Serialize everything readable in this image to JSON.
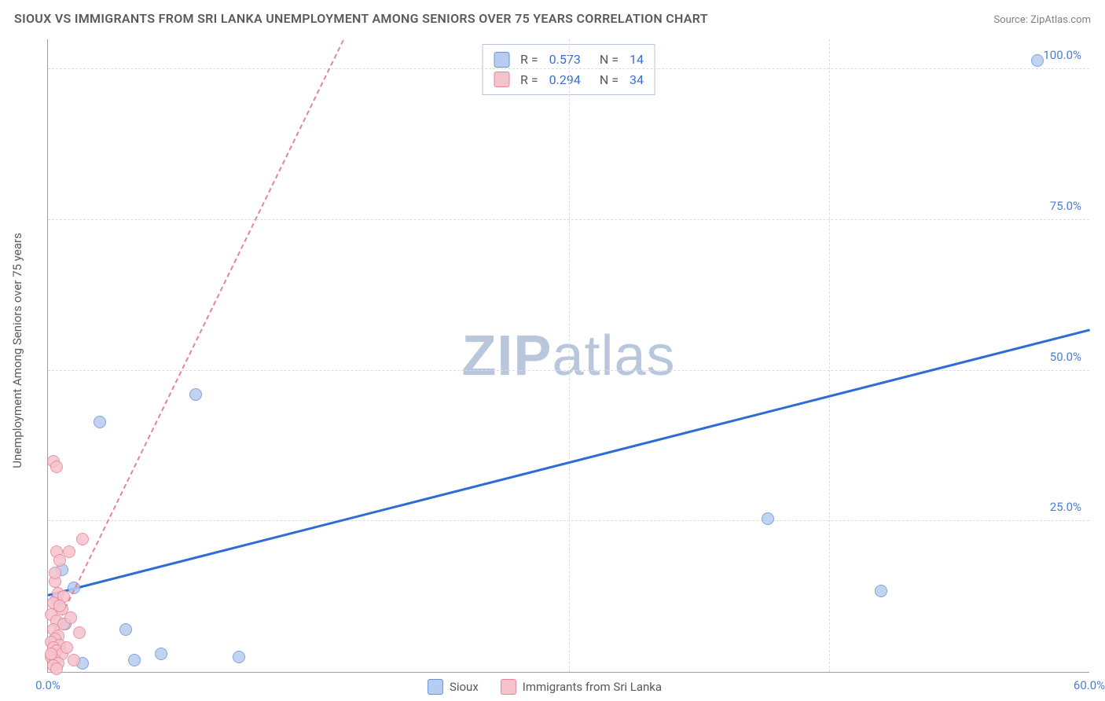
{
  "title": "SIOUX VS IMMIGRANTS FROM SRI LANKA UNEMPLOYMENT AMONG SENIORS OVER 75 YEARS CORRELATION CHART",
  "source_label": "Source:",
  "source_name": "ZipAtlas.com",
  "ylabel": "Unemployment Among Seniors over 75 years",
  "watermark_a": "ZIP",
  "watermark_b": "atlas",
  "chart": {
    "type": "scatter",
    "background_color": "#ffffff",
    "axis_color": "#9aa0a6",
    "grid_color": "#dcdcdc",
    "tick_color": "#4a7fd6",
    "text_color": "#5a5a5a",
    "xlim": [
      0,
      60
    ],
    "ylim": [
      0,
      105
    ],
    "xticks": [
      {
        "v": 0,
        "label": "0.0%"
      },
      {
        "v": 60,
        "label": "60.0%"
      }
    ],
    "xgrid": [
      30,
      45
    ],
    "yticks": [
      {
        "v": 25,
        "label": "25.0%"
      },
      {
        "v": 50,
        "label": "50.0%"
      },
      {
        "v": 75,
        "label": "75.0%"
      },
      {
        "v": 100,
        "label": "100.0%"
      }
    ],
    "marker_radius": 8,
    "series": [
      {
        "id": "sioux",
        "label": "Sioux",
        "fill": "#b6cdf0",
        "stroke": "#6b94d6",
        "trend": {
          "color": "#2e6bd6",
          "width": 3,
          "dash": "solid",
          "x1": 0,
          "y1": 13,
          "x2": 60,
          "y2": 57
        },
        "R_label": "R =",
        "R": "0.573",
        "N_label": "N =",
        "N": "14",
        "points": [
          {
            "x": 57.0,
            "y": 101.5
          },
          {
            "x": 3.0,
            "y": 41.5
          },
          {
            "x": 8.5,
            "y": 46.0
          },
          {
            "x": 41.5,
            "y": 25.5
          },
          {
            "x": 48.0,
            "y": 13.5
          },
          {
            "x": 2.0,
            "y": 1.5
          },
          {
            "x": 4.5,
            "y": 7.0
          },
          {
            "x": 1.5,
            "y": 14.0
          },
          {
            "x": 0.8,
            "y": 17.0
          },
          {
            "x": 5.0,
            "y": 2.0
          },
          {
            "x": 6.5,
            "y": 3.0
          },
          {
            "x": 11.0,
            "y": 2.5
          },
          {
            "x": 1.0,
            "y": 8.0
          },
          {
            "x": 0.5,
            "y": 12.0
          }
        ]
      },
      {
        "id": "srilanka",
        "label": "Immigrants from Sri Lanka",
        "fill": "#f6c3cd",
        "stroke": "#e58596",
        "trend": {
          "color": "#e58596",
          "width": 2,
          "dash": "dashed",
          "x1": 0,
          "y1": 5,
          "x2": 17,
          "y2": 105
        },
        "R_label": "R =",
        "R": "0.294",
        "N_label": "N =",
        "N": "34",
        "points": [
          {
            "x": 0.3,
            "y": 35.0
          },
          {
            "x": 0.5,
            "y": 34.0
          },
          {
            "x": 2.0,
            "y": 22.0
          },
          {
            "x": 0.5,
            "y": 20.0
          },
          {
            "x": 0.7,
            "y": 18.5
          },
          {
            "x": 1.2,
            "y": 20.0
          },
          {
            "x": 0.4,
            "y": 15.0
          },
          {
            "x": 0.6,
            "y": 13.0
          },
          {
            "x": 0.3,
            "y": 11.5
          },
          {
            "x": 0.8,
            "y": 10.5
          },
          {
            "x": 0.2,
            "y": 9.5
          },
          {
            "x": 0.5,
            "y": 8.5
          },
          {
            "x": 0.9,
            "y": 8.0
          },
          {
            "x": 0.3,
            "y": 7.0
          },
          {
            "x": 0.6,
            "y": 6.0
          },
          {
            "x": 0.4,
            "y": 5.5
          },
          {
            "x": 0.2,
            "y": 5.0
          },
          {
            "x": 0.7,
            "y": 4.5
          },
          {
            "x": 0.3,
            "y": 4.0
          },
          {
            "x": 0.5,
            "y": 3.5
          },
          {
            "x": 0.8,
            "y": 3.0
          },
          {
            "x": 0.2,
            "y": 2.5
          },
          {
            "x": 0.4,
            "y": 2.0
          },
          {
            "x": 0.6,
            "y": 1.5
          },
          {
            "x": 0.3,
            "y": 1.0
          },
          {
            "x": 0.5,
            "y": 0.5
          },
          {
            "x": 1.5,
            "y": 2.0
          },
          {
            "x": 1.8,
            "y": 6.5
          },
          {
            "x": 1.1,
            "y": 4.0
          },
          {
            "x": 0.9,
            "y": 12.5
          },
          {
            "x": 0.4,
            "y": 16.5
          },
          {
            "x": 0.2,
            "y": 3.0
          },
          {
            "x": 1.3,
            "y": 9.0
          },
          {
            "x": 0.7,
            "y": 11.0
          }
        ]
      }
    ]
  }
}
